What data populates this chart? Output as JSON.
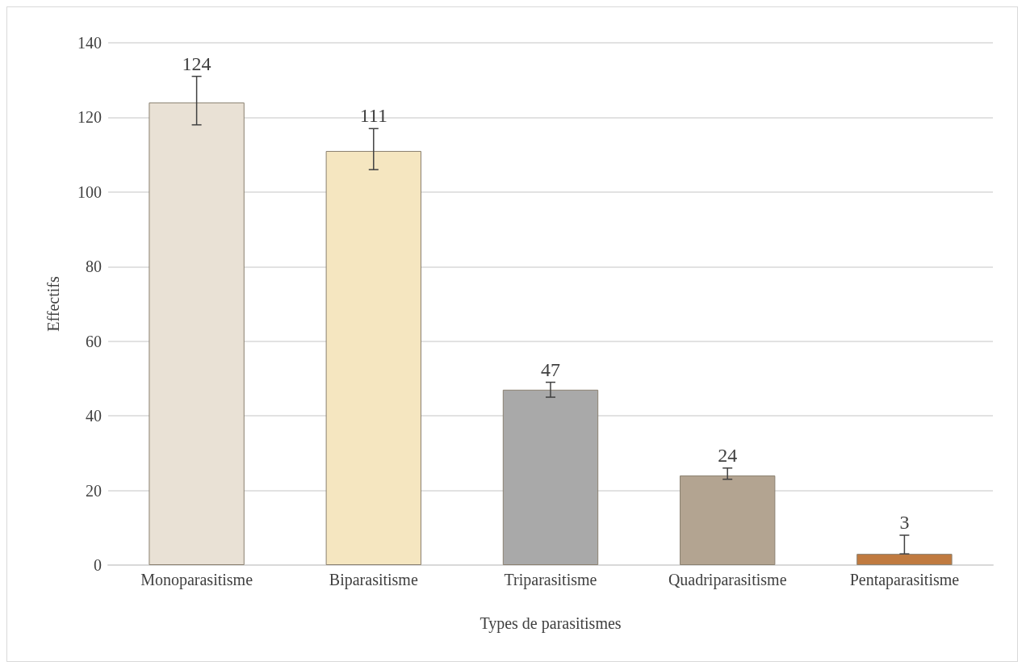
{
  "chart_data": {
    "type": "bar",
    "xlabel": "Types de parasitismes",
    "ylabel": "Effectifs",
    "categories": [
      "Monoparasitisme",
      "Biparasitisme",
      "Triparasitisme",
      "Quadriparasitisme",
      "Pentaparasitisme"
    ],
    "values": [
      124,
      111,
      47,
      24,
      3
    ],
    "colors": [
      "#e9e1d5",
      "#f5e6c0",
      "#a9a9a9",
      "#b3a491",
      "#c07a3f"
    ],
    "errors": [
      [
        118,
        131
      ],
      [
        106,
        117
      ],
      [
        45,
        49
      ],
      [
        23,
        26
      ],
      [
        3,
        8
      ]
    ],
    "ylim": [
      0,
      140
    ],
    "yticks": [
      0,
      20,
      40,
      60,
      80,
      100,
      120,
      140
    ],
    "grid": "y",
    "data_labels": true
  }
}
